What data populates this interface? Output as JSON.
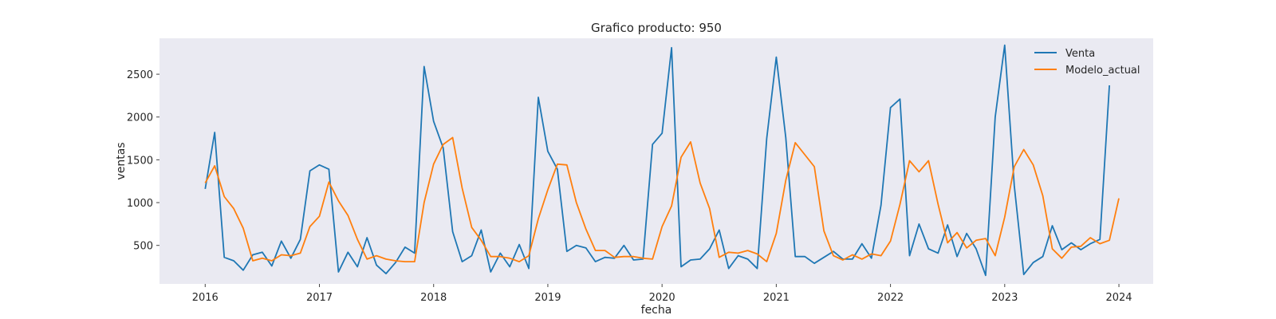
{
  "chart_data": {
    "type": "line",
    "title": "Grafico producto: 950",
    "xlabel": "fecha",
    "ylabel": "ventas",
    "xlim": [
      2015.6,
      2024.3
    ],
    "ylim": [
      50,
      2920
    ],
    "x_ticks": [
      2016,
      2017,
      2018,
      2019,
      2020,
      2021,
      2022,
      2023,
      2024
    ],
    "x_tick_labels": [
      "2016",
      "2017",
      "2018",
      "2019",
      "2020",
      "2021",
      "2022",
      "2023",
      "2024"
    ],
    "y_ticks": [
      500,
      1000,
      1500,
      2000,
      2500
    ],
    "y_tick_labels": [
      "500",
      "1000",
      "1500",
      "2000",
      "2500"
    ],
    "grid": false,
    "legend": "top-right",
    "x_start": 2016.0,
    "x_step_months": 1,
    "series": [
      {
        "name": "Venta",
        "color": "#1f77b4",
        "values": [
          1160,
          1820,
          360,
          320,
          210,
          390,
          420,
          260,
          550,
          350,
          570,
          1370,
          1440,
          1390,
          190,
          420,
          250,
          590,
          270,
          170,
          300,
          480,
          410,
          2590,
          1950,
          1640,
          660,
          310,
          380,
          680,
          190,
          410,
          250,
          510,
          230,
          2230,
          1600,
          1390,
          430,
          500,
          470,
          310,
          360,
          350,
          500,
          330,
          340,
          1680,
          1810,
          2810,
          250,
          330,
          340,
          460,
          680,
          230,
          380,
          340,
          230,
          1750,
          2700,
          1760,
          370,
          370,
          290,
          360,
          430,
          340,
          340,
          520,
          350,
          970,
          2110,
          2210,
          380,
          750,
          460,
          410,
          740,
          370,
          640,
          460,
          150,
          2000,
          2840,
          1200,
          160,
          300,
          370,
          730,
          450,
          530,
          450,
          520,
          570,
          2370
        ]
      },
      {
        "name": "Modelo_actual",
        "color": "#ff7f0e",
        "values": [
          1230,
          1430,
          1070,
          930,
          700,
          320,
          350,
          320,
          390,
          380,
          410,
          720,
          840,
          1240,
          1020,
          850,
          570,
          340,
          380,
          340,
          320,
          310,
          310,
          1000,
          1450,
          1680,
          1760,
          1170,
          710,
          560,
          370,
          370,
          350,
          310,
          380,
          810,
          1150,
          1450,
          1440,
          1000,
          690,
          440,
          440,
          360,
          370,
          370,
          350,
          340,
          720,
          960,
          1530,
          1710,
          1230,
          930,
          360,
          420,
          410,
          440,
          400,
          310,
          640,
          1260,
          1700,
          1560,
          1420,
          670,
          380,
          330,
          390,
          340,
          400,
          380,
          550,
          980,
          1490,
          1360,
          1490,
          980,
          530,
          650,
          470,
          560,
          580,
          380,
          830,
          1420,
          1620,
          1440,
          1080,
          460,
          350,
          480,
          490,
          590,
          520,
          560,
          1050
        ]
      }
    ]
  }
}
